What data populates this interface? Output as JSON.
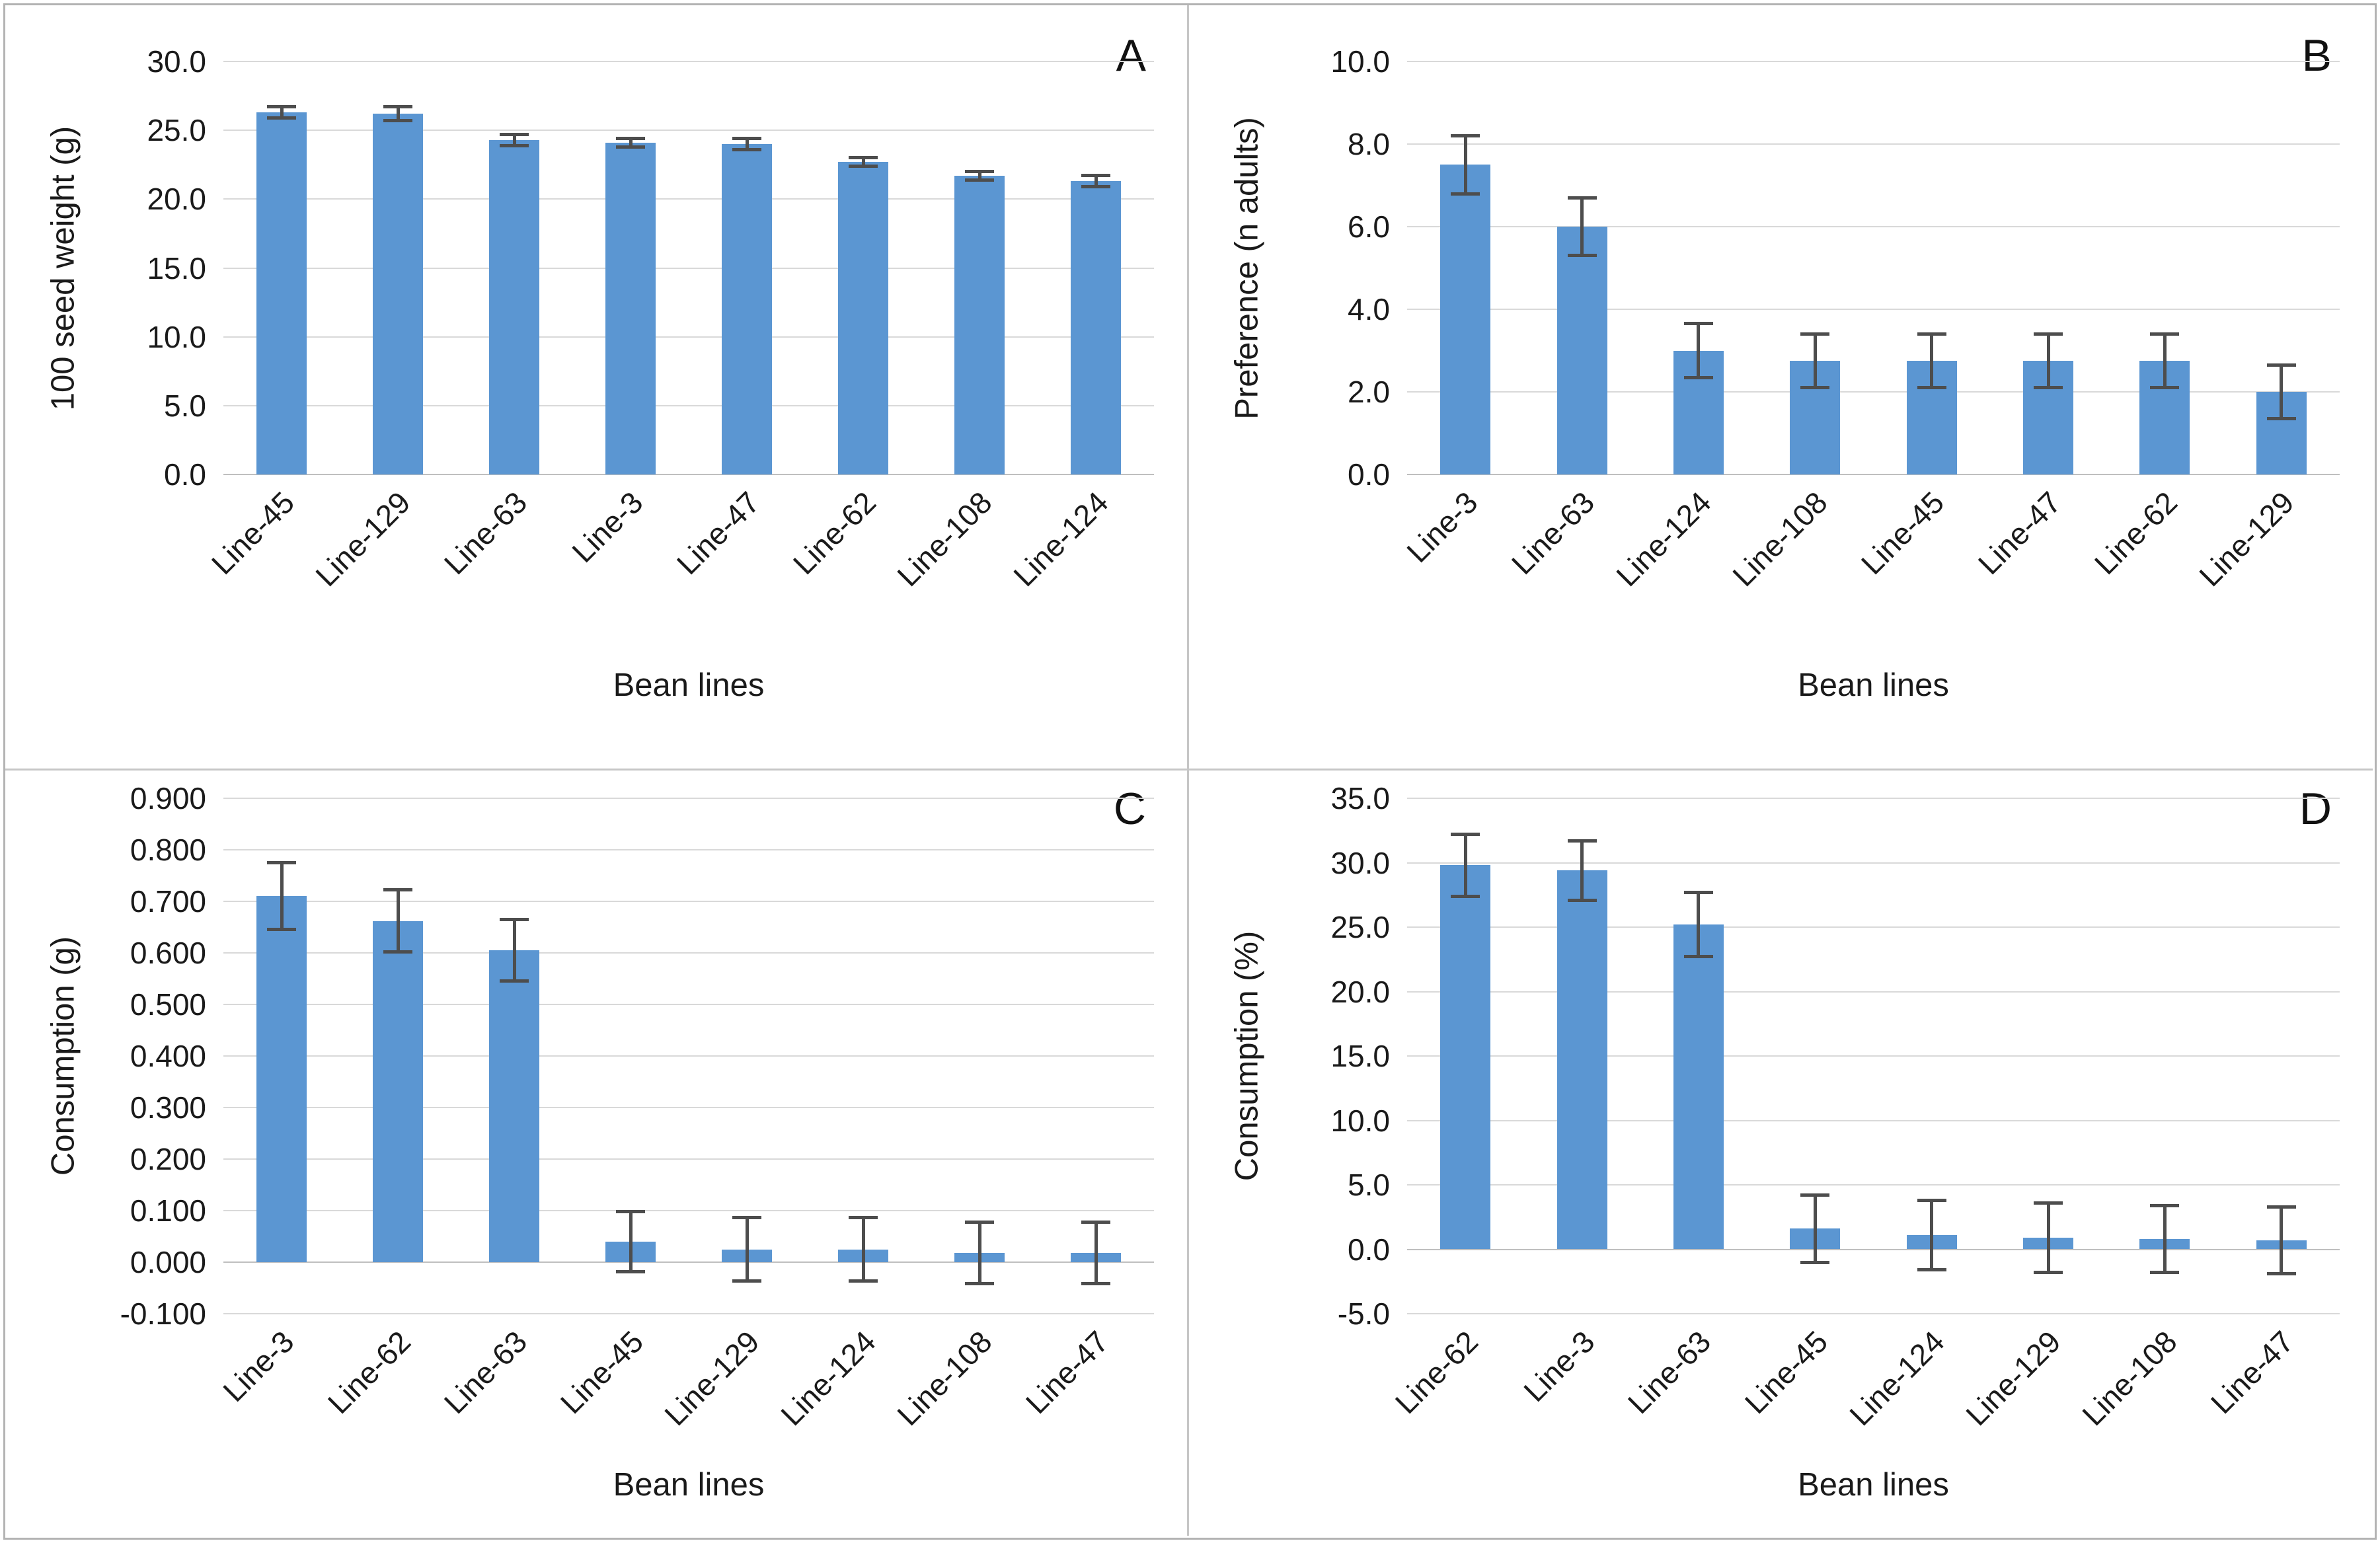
{
  "figure": {
    "panel_count": 4,
    "border_color": "#b3b3b3",
    "background": "#ffffff"
  },
  "style": {
    "bar_color": "#5b96d2",
    "error_bar_color": "#4d4d4d",
    "gridline_color": "#d9d9d9",
    "zero_axis_color": "#bfbfbf",
    "text_color": "#1a1a1a"
  },
  "chart_data": [
    {
      "panel_label": "A",
      "type": "bar",
      "ylabel": "100 seed weight (g)",
      "xlabel": "Bean lines",
      "ymin": 0,
      "ymax": 30,
      "ystep": 5,
      "tick_decimals": 1,
      "grid": true,
      "legend": "none",
      "categories": [
        "Line-45",
        "Line-129",
        "Line-63",
        "Line-3",
        "Line-47",
        "Line-62",
        "Line-108",
        "Line-124"
      ],
      "values": [
        26.3,
        26.2,
        24.3,
        24.1,
        24.0,
        22.7,
        21.7,
        21.3
      ],
      "errors": [
        0.4,
        0.5,
        0.4,
        0.3,
        0.4,
        0.3,
        0.3,
        0.4
      ]
    },
    {
      "panel_label": "B",
      "type": "bar",
      "ylabel": "Preference (n adults)",
      "xlabel": "Bean lines",
      "ymin": 0,
      "ymax": 10,
      "ystep": 2,
      "tick_decimals": 1,
      "grid": true,
      "legend": "none",
      "categories": [
        "Line-3",
        "Line-63",
        "Line-124",
        "Line-108",
        "Line-45",
        "Line-47",
        "Line-62",
        "Line-129"
      ],
      "values": [
        7.5,
        6.0,
        3.0,
        2.75,
        2.75,
        2.75,
        2.75,
        2.0
      ],
      "errors": [
        0.7,
        0.7,
        0.65,
        0.65,
        0.65,
        0.65,
        0.65,
        0.65
      ]
    },
    {
      "panel_label": "C",
      "type": "bar",
      "ylabel": "Consumption (g)",
      "xlabel": "Bean lines",
      "ymin": -0.1,
      "ymax": 0.9,
      "ystep": 0.1,
      "tick_decimals": 3,
      "grid": true,
      "legend": "none",
      "categories": [
        "Line-3",
        "Line-62",
        "Line-63",
        "Line-45",
        "Line-129",
        "Line-124",
        "Line-108",
        "Line-47"
      ],
      "values": [
        0.71,
        0.662,
        0.605,
        0.04,
        0.025,
        0.025,
        0.018,
        0.018
      ],
      "errors": [
        0.065,
        0.06,
        0.06,
        0.058,
        0.062,
        0.062,
        0.06,
        0.06
      ]
    },
    {
      "panel_label": "D",
      "type": "bar",
      "ylabel": "Consumption (%)",
      "xlabel": "Bean lines",
      "ymin": -5,
      "ymax": 35,
      "ystep": 5,
      "tick_decimals": 1,
      "grid": true,
      "legend": "none",
      "categories": [
        "Line-62",
        "Line-3",
        "Line-63",
        "Line-45",
        "Line-124",
        "Line-129",
        "Line-108",
        "Line-47"
      ],
      "values": [
        29.8,
        29.4,
        25.2,
        1.6,
        1.1,
        0.9,
        0.8,
        0.7
      ],
      "errors": [
        2.4,
        2.3,
        2.5,
        2.6,
        2.7,
        2.7,
        2.6,
        2.6
      ]
    }
  ]
}
